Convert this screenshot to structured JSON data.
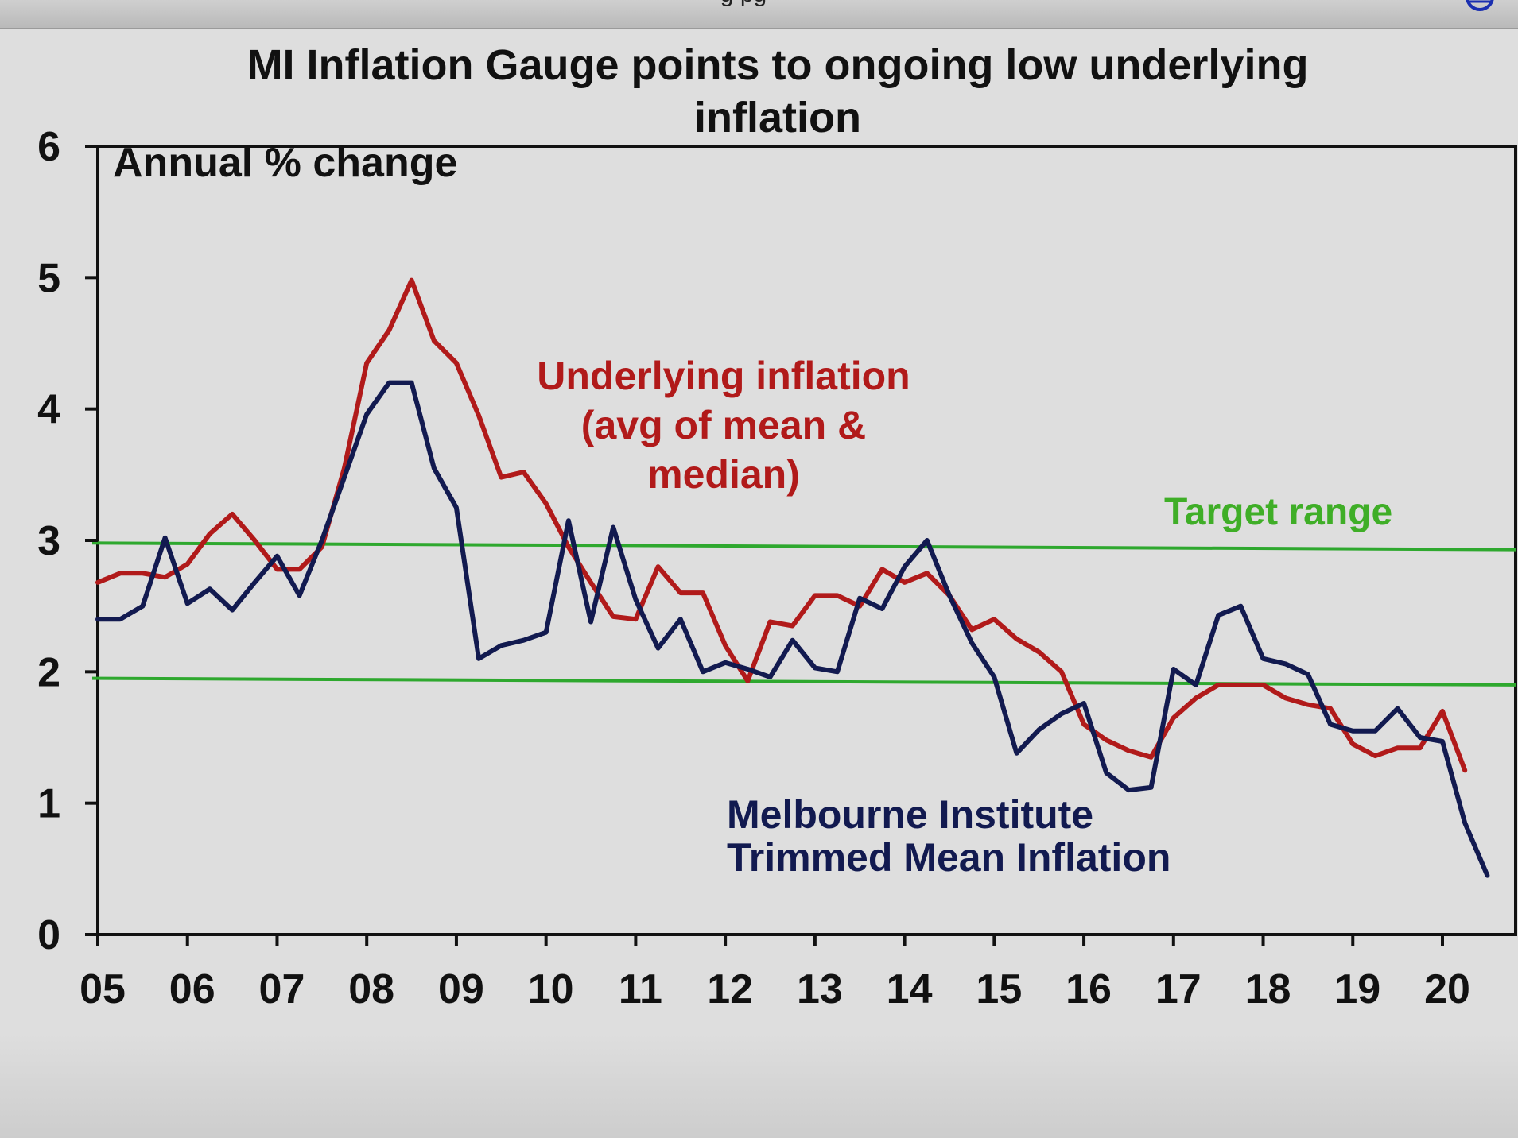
{
  "window": {
    "title_fragment": "g  pg"
  },
  "chart_data": {
    "type": "line",
    "title_lines": [
      "MI Inflation Gauge points to ongoing low underlying",
      "inflation"
    ],
    "ylabel": "Annual % change",
    "xlabel": "",
    "ylim": [
      0,
      6
    ],
    "yticks": [
      0,
      1,
      2,
      3,
      4,
      5,
      6
    ],
    "xlim": [
      2005,
      2021.2
    ],
    "xticks": [
      {
        "value": 2005,
        "label": "05"
      },
      {
        "value": 2006,
        "label": "06"
      },
      {
        "value": 2007,
        "label": "07"
      },
      {
        "value": 2008,
        "label": "08"
      },
      {
        "value": 2009,
        "label": "09"
      },
      {
        "value": 2010,
        "label": "10"
      },
      {
        "value": 2011,
        "label": "11"
      },
      {
        "value": 2012,
        "label": "12"
      },
      {
        "value": 2013,
        "label": "13"
      },
      {
        "value": 2014,
        "label": "14"
      },
      {
        "value": 2015,
        "label": "15"
      },
      {
        "value": 2016,
        "label": "16"
      },
      {
        "value": 2017,
        "label": "17"
      },
      {
        "value": 2018,
        "label": "18"
      },
      {
        "value": 2019,
        "label": "19"
      },
      {
        "value": 2020,
        "label": "20"
      }
    ],
    "grid": false,
    "reference_lines": [
      {
        "name": "target-upper",
        "start": 2.98,
        "end": 2.93,
        "color": "#2ea82e"
      },
      {
        "name": "target-lower",
        "start": 1.95,
        "end": 1.9,
        "color": "#2ea82e"
      }
    ],
    "series": [
      {
        "name": "Underlying inflation (avg of mean & median)",
        "color": "#b11a1a",
        "x": [
          2005.0,
          2005.25,
          2005.5,
          2005.75,
          2006.0,
          2006.25,
          2006.5,
          2006.75,
          2007.0,
          2007.25,
          2007.5,
          2007.75,
          2008.0,
          2008.25,
          2008.5,
          2008.75,
          2009.0,
          2009.25,
          2009.5,
          2009.75,
          2010.0,
          2010.25,
          2010.5,
          2010.75,
          2011.0,
          2011.25,
          2011.5,
          2011.75,
          2012.0,
          2012.25,
          2012.5,
          2012.75,
          2013.0,
          2013.25,
          2013.5,
          2013.75,
          2014.0,
          2014.25,
          2014.5,
          2014.75,
          2015.0,
          2015.25,
          2015.5,
          2015.75,
          2016.0,
          2016.25,
          2016.5,
          2016.75,
          2017.0,
          2017.25,
          2017.5,
          2017.75,
          2018.0,
          2018.25,
          2018.5,
          2018.75,
          2019.0,
          2019.25,
          2019.5,
          2019.75,
          2020.0,
          2020.25
        ],
        "values": [
          2.68,
          2.75,
          2.75,
          2.72,
          2.82,
          3.05,
          3.2,
          3.0,
          2.78,
          2.78,
          2.95,
          3.55,
          4.35,
          4.6,
          4.98,
          4.52,
          4.35,
          3.95,
          3.48,
          3.52,
          3.28,
          2.95,
          2.68,
          2.42,
          2.4,
          2.8,
          2.6,
          2.6,
          2.2,
          1.93,
          2.38,
          2.35,
          2.58,
          2.58,
          2.5,
          2.78,
          2.68,
          2.75,
          2.58,
          2.32,
          2.4,
          2.25,
          2.15,
          2.0,
          1.6,
          1.48,
          1.4,
          1.35,
          1.65,
          1.8,
          1.9,
          1.9,
          1.9,
          1.8,
          1.75,
          1.72,
          1.45,
          1.36,
          1.42,
          1.42,
          1.7,
          1.25
        ]
      },
      {
        "name": "Melbourne Institute Trimmed Mean Inflation",
        "color": "#121a50",
        "x": [
          2005.0,
          2005.25,
          2005.5,
          2005.75,
          2006.0,
          2006.25,
          2006.5,
          2006.75,
          2007.0,
          2007.25,
          2007.5,
          2007.75,
          2008.0,
          2008.25,
          2008.5,
          2008.75,
          2009.0,
          2009.25,
          2009.5,
          2009.75,
          2010.0,
          2010.25,
          2010.5,
          2010.75,
          2011.0,
          2011.25,
          2011.5,
          2011.75,
          2012.0,
          2012.25,
          2012.5,
          2012.75,
          2013.0,
          2013.25,
          2013.5,
          2013.75,
          2014.0,
          2014.25,
          2014.5,
          2014.75,
          2015.0,
          2015.25,
          2015.5,
          2015.75,
          2016.0,
          2016.25,
          2016.5,
          2016.75,
          2017.0,
          2017.25,
          2017.5,
          2017.75,
          2018.0,
          2018.25,
          2018.5,
          2018.75,
          2019.0,
          2019.25,
          2019.5,
          2019.75,
          2020.0,
          2020.25,
          2020.5
        ],
        "values": [
          2.4,
          2.4,
          2.5,
          3.02,
          2.52,
          2.63,
          2.47,
          2.68,
          2.88,
          2.58,
          3.0,
          3.48,
          3.96,
          4.2,
          4.2,
          3.55,
          3.25,
          2.1,
          2.2,
          2.24,
          2.3,
          3.15,
          2.38,
          3.1,
          2.55,
          2.18,
          2.4,
          2.0,
          2.07,
          2.02,
          1.96,
          2.24,
          2.03,
          2.0,
          2.56,
          2.48,
          2.8,
          3.0,
          2.58,
          2.22,
          1.96,
          1.38,
          1.56,
          1.68,
          1.76,
          1.23,
          1.1,
          1.12,
          2.02,
          1.9,
          2.43,
          2.5,
          2.1,
          2.06,
          1.98,
          1.6,
          1.55,
          1.55,
          1.72,
          1.5,
          1.47,
          0.85,
          0.45
        ]
      }
    ],
    "annotations": [
      {
        "name": "annotation-underlying",
        "lines": [
          "Underlying inflation",
          "(avg of mean &",
          "median)"
        ],
        "color": "#b11a1a"
      },
      {
        "name": "annotation-target-range",
        "lines": [
          "Target range"
        ],
        "color": "#3fae27"
      },
      {
        "name": "annotation-melbourne",
        "lines": [
          "Melbourne Institute",
          "Trimmed Mean Inflation"
        ],
        "color": "#121a50"
      }
    ]
  }
}
